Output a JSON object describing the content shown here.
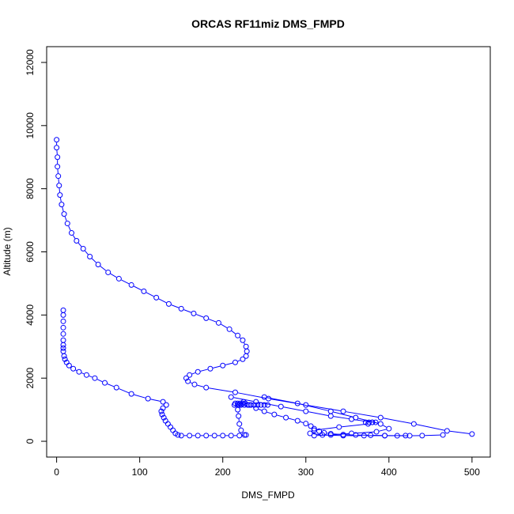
{
  "chart_data": {
    "type": "scatter",
    "title": "ORCAS RF11miz DMS_FMPD",
    "xlabel": "DMS_FMPD",
    "ylabel": "Altitude (m)",
    "xlim": [
      -12,
      522
    ],
    "ylim": [
      -500,
      12500
    ],
    "xticks": [
      0,
      100,
      200,
      300,
      400,
      500
    ],
    "yticks": [
      0,
      2000,
      4000,
      6000,
      8000,
      10000,
      12000
    ],
    "grid": false,
    "legend": "none",
    "point_color": "#0000ff",
    "series": [
      {
        "style": "points-and-lines",
        "x": [
          0,
          0,
          1,
          1,
          2,
          3,
          4,
          6,
          9,
          13,
          18,
          24,
          32,
          40,
          50,
          62,
          75,
          90,
          105,
          120,
          135,
          150,
          165,
          180,
          195,
          208,
          218,
          224,
          228,
          229,
          228,
          224,
          215,
          200,
          185,
          170,
          160,
          156,
          158,
          166,
          180,
          215,
          255,
          300,
          345,
          390,
          430,
          470,
          500
        ],
        "y": [
          9550,
          9300,
          9000,
          8700,
          8400,
          8100,
          7800,
          7500,
          7200,
          6900,
          6600,
          6350,
          6100,
          5850,
          5600,
          5350,
          5150,
          4950,
          4750,
          4550,
          4350,
          4200,
          4050,
          3900,
          3750,
          3550,
          3350,
          3200,
          3000,
          2850,
          2700,
          2600,
          2500,
          2400,
          2300,
          2200,
          2100,
          2000,
          1900,
          1800,
          1700,
          1550,
          1350,
          1150,
          950,
          750,
          550,
          330,
          230
        ]
      },
      {
        "style": "points-and-lines",
        "x": [
          8,
          8,
          8,
          8,
          8,
          8,
          8,
          8,
          8,
          9,
          10,
          12,
          15,
          20,
          27,
          36,
          46,
          58,
          72,
          90,
          110,
          128,
          132,
          128,
          126,
          127,
          129,
          131,
          134,
          137,
          140,
          143,
          146,
          150,
          160,
          170,
          180,
          190,
          200,
          210,
          220,
          228
        ],
        "y": [
          4150,
          4000,
          3800,
          3600,
          3400,
          3200,
          3050,
          2950,
          2850,
          2700,
          2600,
          2500,
          2400,
          2300,
          2200,
          2100,
          2000,
          1850,
          1700,
          1500,
          1350,
          1250,
          1150,
          1050,
          950,
          850,
          750,
          650,
          550,
          450,
          350,
          250,
          200,
          180,
          180,
          180,
          180,
          180,
          180,
          180,
          180,
          200
        ]
      },
      {
        "style": "points-and-lines",
        "x": [
          226,
          222,
          220,
          219,
          218,
          220,
          225,
          232,
          240,
          250,
          262,
          276,
          290,
          300,
          306,
          310,
          316,
          322,
          330,
          345,
          360,
          378,
          395,
          410,
          425,
          440,
          465
        ],
        "y": [
          200,
          350,
          550,
          800,
          1000,
          1150,
          1250,
          1150,
          1050,
          950,
          850,
          750,
          650,
          560,
          480,
          400,
          320,
          270,
          240,
          210,
          200,
          190,
          180,
          175,
          175,
          180,
          200
        ]
      },
      {
        "style": "points-and-lines",
        "x": [
          210,
          240,
          270,
          300,
          330,
          355,
          380,
          375,
          340,
          310,
          305,
          320,
          345,
          370,
          395,
          420
        ],
        "y": [
          1400,
          1250,
          1100,
          950,
          800,
          700,
          600,
          550,
          450,
          350,
          250,
          200,
          180,
          180,
          180,
          180
        ]
      },
      {
        "style": "points-and-lines",
        "x": [
          250,
          290,
          330,
          360,
          390,
          400,
          385,
          355,
          330,
          310
        ],
        "y": [
          1400,
          1200,
          950,
          750,
          550,
          400,
          300,
          250,
          200,
          180
        ]
      },
      {
        "style": "points-only",
        "x": [
          214,
          218,
          222,
          226,
          230,
          234,
          238,
          242,
          246,
          250,
          254,
          215,
          218,
          221,
          224,
          227,
          372,
          376,
          380,
          384
        ],
        "y": [
          1150,
          1150,
          1150,
          1150,
          1150,
          1150,
          1150,
          1150,
          1150,
          1150,
          1150,
          1200,
          1200,
          1200,
          1200,
          1200,
          600,
          600,
          600,
          600
        ]
      }
    ]
  }
}
